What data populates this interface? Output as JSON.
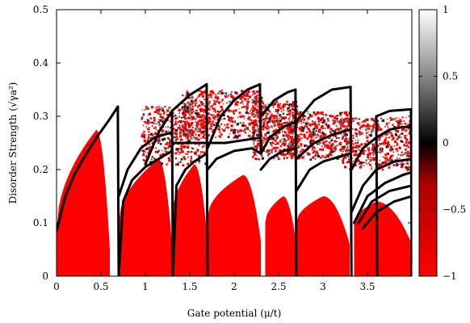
{
  "chart_data": {
    "type": "heatmap",
    "title": "",
    "xlabel": "Gate potential (μ/t)",
    "ylabel": "Disorder Strength (√γa²)",
    "xlim": [
      0,
      4.0
    ],
    "ylim": [
      0,
      0.5
    ],
    "xticks": [
      {
        "value": 0,
        "label": "0"
      },
      {
        "value": 0.5,
        "label": "0.5"
      },
      {
        "value": 1,
        "label": "1"
      },
      {
        "value": 1.5,
        "label": "1.5"
      },
      {
        "value": 2,
        "label": "2"
      },
      {
        "value": 2.5,
        "label": "2.5"
      },
      {
        "value": 3,
        "label": "3"
      },
      {
        "value": 3.5,
        "label": "3.5"
      }
    ],
    "yticks": [
      {
        "value": 0,
        "label": "0"
      },
      {
        "value": 0.1,
        "label": "0.1"
      },
      {
        "value": 0.2,
        "label": "0.2"
      },
      {
        "value": 0.3,
        "label": "0.3"
      },
      {
        "value": 0.4,
        "label": "0.4"
      },
      {
        "value": 0.5,
        "label": "0.5"
      }
    ],
    "colorbar": {
      "range": [
        -1,
        1
      ],
      "ticks": [
        {
          "value": 1,
          "label": "1"
        },
        {
          "value": 0.5,
          "label": "0.5"
        },
        {
          "value": 0,
          "label": "0"
        },
        {
          "value": -0.5,
          "label": "−0.5"
        },
        {
          "value": -1,
          "label": "−1"
        }
      ],
      "colors": {
        "low": "#ff0000",
        "mid": "#000000",
        "high": "#ffffff"
      }
    },
    "phase_lobes_value": -1,
    "red_lobes": [
      {
        "x_start": 0.0,
        "x_end": 0.6,
        "y_start": 0.085,
        "y_peak": 0.275,
        "peak_at": 0.45
      },
      {
        "x_start": 0.7,
        "x_end": 1.3,
        "y_start": 0.1,
        "y_peak": 0.22,
        "peak_at": 1.15
      },
      {
        "x_start": 1.3,
        "x_end": 1.7,
        "y_start": 0.11,
        "y_peak": 0.21,
        "peak_at": 1.55
      },
      {
        "x_start": 1.7,
        "x_end": 2.3,
        "y_start": 0.11,
        "y_peak": 0.19,
        "peak_at": 2.1
      },
      {
        "x_start": 2.35,
        "x_end": 2.7,
        "y_start": 0.1,
        "y_peak": 0.15,
        "peak_at": 2.55
      },
      {
        "x_start": 2.7,
        "x_end": 3.3,
        "y_start": 0.1,
        "y_peak": 0.15,
        "peak_at": 3.0
      },
      {
        "x_start": 3.35,
        "x_end": 4.0,
        "y_start": 0.1,
        "y_peak": 0.14,
        "peak_at": 3.6
      }
    ],
    "speckle_bands": [
      {
        "x_start": 0.95,
        "x_end": 1.7,
        "y_low": 0.21,
        "y_high": 0.32
      },
      {
        "x_start": 1.4,
        "x_end": 2.3,
        "y_low": 0.26,
        "y_high": 0.35
      },
      {
        "x_start": 2.2,
        "x_end": 2.7,
        "y_low": 0.22,
        "y_high": 0.33
      },
      {
        "x_start": 2.6,
        "x_end": 3.3,
        "y_low": 0.22,
        "y_high": 0.31
      },
      {
        "x_start": 3.2,
        "x_end": 4.0,
        "y_low": 0.2,
        "y_high": 0.3
      }
    ],
    "boundary_curves": [
      {
        "x": [
          0.0,
          0.1,
          0.2,
          0.3,
          0.45,
          0.6,
          0.69
        ],
        "y": [
          0.085,
          0.15,
          0.19,
          0.22,
          0.26,
          0.295,
          0.318
        ]
      },
      {
        "x": [
          0.69,
          0.7
        ],
        "y": [
          0.318,
          0.0
        ]
      },
      {
        "x": [
          0.7,
          0.75,
          0.85,
          1.0,
          1.15,
          1.3
        ],
        "y": [
          0.0,
          0.14,
          0.18,
          0.205,
          0.22,
          0.235
        ]
      },
      {
        "x": [
          0.7,
          0.8,
          0.95,
          1.1,
          1.3
        ],
        "y": [
          0.15,
          0.2,
          0.24,
          0.26,
          0.27
        ]
      },
      {
        "x": [
          1.0,
          1.15,
          1.3,
          1.5,
          1.69
        ],
        "y": [
          0.21,
          0.27,
          0.31,
          0.34,
          0.36
        ]
      },
      {
        "x": [
          1.3,
          1.31
        ],
        "y": [
          0.31,
          0.0
        ]
      },
      {
        "x": [
          1.69,
          1.7
        ],
        "y": [
          0.36,
          0.0
        ]
      },
      {
        "x": [
          1.31,
          1.35,
          1.45,
          1.55,
          1.69
        ],
        "y": [
          0.0,
          0.17,
          0.2,
          0.215,
          0.23
        ]
      },
      {
        "x": [
          1.31,
          1.6,
          1.9,
          2.1,
          2.3
        ],
        "y": [
          0.25,
          0.25,
          0.25,
          0.255,
          0.26
        ]
      },
      {
        "x": [
          1.7,
          1.85,
          2.0,
          2.15,
          2.29
        ],
        "y": [
          0.24,
          0.3,
          0.33,
          0.35,
          0.36
        ]
      },
      {
        "x": [
          2.29,
          2.3
        ],
        "y": [
          0.36,
          0.23
        ]
      },
      {
        "x": [
          1.7,
          1.8,
          2.0,
          2.2,
          2.3
        ],
        "y": [
          0.2,
          0.22,
          0.235,
          0.24,
          0.23
        ]
      },
      {
        "x": [
          2.3,
          2.45,
          2.6,
          2.69
        ],
        "y": [
          0.3,
          0.33,
          0.345,
          0.35
        ]
      },
      {
        "x": [
          2.69,
          2.7
        ],
        "y": [
          0.35,
          0.0
        ]
      },
      {
        "x": [
          2.3,
          2.4,
          2.55,
          2.7
        ],
        "y": [
          0.23,
          0.26,
          0.28,
          0.29
        ]
      },
      {
        "x": [
          2.3,
          2.4,
          2.55,
          2.7
        ],
        "y": [
          0.2,
          0.22,
          0.235,
          0.24
        ]
      },
      {
        "x": [
          2.7,
          2.9,
          3.1,
          3.31
        ],
        "y": [
          0.29,
          0.33,
          0.35,
          0.355
        ]
      },
      {
        "x": [
          3.31,
          3.32
        ],
        "y": [
          0.355,
          0.0
        ]
      },
      {
        "x": [
          2.7,
          2.9,
          3.1,
          3.3
        ],
        "y": [
          0.22,
          0.25,
          0.265,
          0.275
        ]
      },
      {
        "x": [
          2.7,
          2.85,
          3.0,
          3.3
        ],
        "y": [
          0.16,
          0.2,
          0.215,
          0.23
        ]
      },
      {
        "x": [
          3.32,
          3.45,
          3.6,
          3.75,
          3.9,
          4.0
        ],
        "y": [
          0.2,
          0.24,
          0.26,
          0.275,
          0.28,
          0.28
        ]
      },
      {
        "x": [
          3.6,
          3.61
        ],
        "y": [
          0.3,
          0.0
        ]
      },
      {
        "x": [
          3.6,
          3.75,
          3.99
        ],
        "y": [
          0.3,
          0.31,
          0.313
        ]
      },
      {
        "x": [
          3.99,
          4.0
        ],
        "y": [
          0.313,
          0.0
        ]
      },
      {
        "x": [
          3.32,
          3.45,
          3.6,
          3.8,
          4.0
        ],
        "y": [
          0.12,
          0.17,
          0.2,
          0.215,
          0.22
        ]
      },
      {
        "x": [
          3.35,
          3.5,
          3.7,
          3.9,
          4.0
        ],
        "y": [
          0.1,
          0.15,
          0.175,
          0.19,
          0.195
        ]
      },
      {
        "x": [
          3.4,
          3.55,
          3.75,
          4.0
        ],
        "y": [
          0.1,
          0.14,
          0.16,
          0.17
        ]
      },
      {
        "x": [
          3.45,
          3.6,
          3.8,
          4.0
        ],
        "y": [
          0.09,
          0.12,
          0.14,
          0.15
        ]
      }
    ]
  }
}
